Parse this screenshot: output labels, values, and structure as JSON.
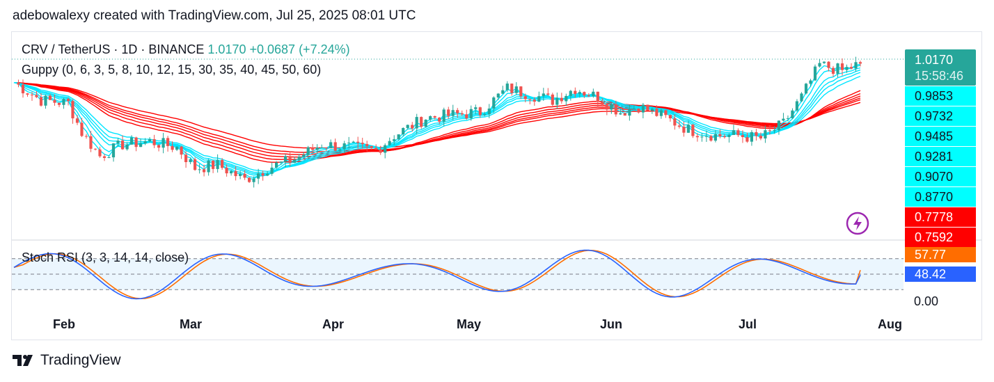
{
  "header": {
    "text": "adebowalexy created with TradingView.com, Jul 25, 2025 08:01 UTC"
  },
  "legend": {
    "symbol": "CRV / TetherUS · 1D · BINANCE",
    "last": "1.0170",
    "change": "+0.0687 (+7.24%)",
    "indicator": "Guppy (0, 6, 3, 5, 8, 10, 12, 15, 30, 35, 40, 45, 50, 60)",
    "oscillator": "Stoch RSI (3, 3, 14, 14, close)"
  },
  "price_axis": {
    "last_price": "1.0170",
    "countdown": "15:58:46",
    "tags": [
      {
        "value": "0.9853",
        "color": "#00ffff"
      },
      {
        "value": "0.9732",
        "color": "#00ffff"
      },
      {
        "value": "0.9485",
        "color": "#00ffff"
      },
      {
        "value": "0.9281",
        "color": "#00ffff"
      },
      {
        "value": "0.9070",
        "color": "#00ffff"
      },
      {
        "value": "0.8770",
        "color": "#00ffff"
      },
      {
        "value": "0.7778",
        "color": "#ff0000"
      },
      {
        "value": "0.7592",
        "color": "#ff0000"
      }
    ]
  },
  "osc_axis": {
    "k_value": "57.77",
    "d_value": "48.42",
    "zero": "0.00",
    "k_color": "#ff6d00",
    "d_color": "#2962ff"
  },
  "x_axis": {
    "months": [
      "Feb",
      "Mar",
      "Apr",
      "May",
      "Jun",
      "Jul",
      "Aug"
    ]
  },
  "footer": {
    "brand": "TradingView"
  },
  "icons": {
    "flash": "flash-icon",
    "logo": "tradingview-logo-icon"
  },
  "colors": {
    "up": "#26a69a",
    "down": "#ef5350",
    "fast_ema": "#00e5ff",
    "slow_ema": "#ff0000"
  },
  "chart_data": {
    "type": "candlestick",
    "symbol": "CRV / TetherUS",
    "interval": "1D",
    "ylim": [
      0.72,
      1.06
    ],
    "close_path": [
      [
        "2025-01-19",
        0.985
      ],
      [
        "2025-01-25",
        0.955
      ],
      [
        "2025-01-31",
        0.95
      ],
      [
        "2025-02-03",
        0.9
      ],
      [
        "2025-02-07",
        0.86
      ],
      [
        "2025-02-12",
        0.88
      ],
      [
        "2025-02-18",
        0.885
      ],
      [
        "2025-02-24",
        0.875
      ],
      [
        "2025-02-28",
        0.84
      ],
      [
        "2025-03-05",
        0.845
      ],
      [
        "2025-03-11",
        0.82
      ],
      [
        "2025-03-16",
        0.84
      ],
      [
        "2025-03-22",
        0.855
      ],
      [
        "2025-03-28",
        0.88
      ],
      [
        "2025-04-03",
        0.875
      ],
      [
        "2025-04-09",
        0.87
      ],
      [
        "2025-04-13",
        0.895
      ],
      [
        "2025-04-20",
        0.925
      ],
      [
        "2025-04-26",
        0.93
      ],
      [
        "2025-05-02",
        0.935
      ],
      [
        "2025-05-08",
        0.975
      ],
      [
        "2025-05-13",
        0.965
      ],
      [
        "2025-05-18",
        0.955
      ],
      [
        "2025-05-23",
        0.975
      ],
      [
        "2025-05-28",
        0.96
      ],
      [
        "2025-06-02",
        0.935
      ],
      [
        "2025-06-06",
        0.945
      ],
      [
        "2025-06-12",
        0.925
      ],
      [
        "2025-06-17",
        0.905
      ],
      [
        "2025-06-23",
        0.895
      ],
      [
        "2025-06-28",
        0.895
      ],
      [
        "2025-07-03",
        0.89
      ],
      [
        "2025-07-08",
        0.915
      ],
      [
        "2025-07-12",
        0.96
      ],
      [
        "2025-07-16",
        1.015
      ],
      [
        "2025-07-21",
        1.005
      ],
      [
        "2025-07-25",
        1.017
      ]
    ],
    "stoch_rsi": {
      "k_last": 57.77,
      "d_last": 48.42,
      "bands": [
        20,
        80
      ],
      "ylim": [
        0,
        100
      ]
    }
  }
}
